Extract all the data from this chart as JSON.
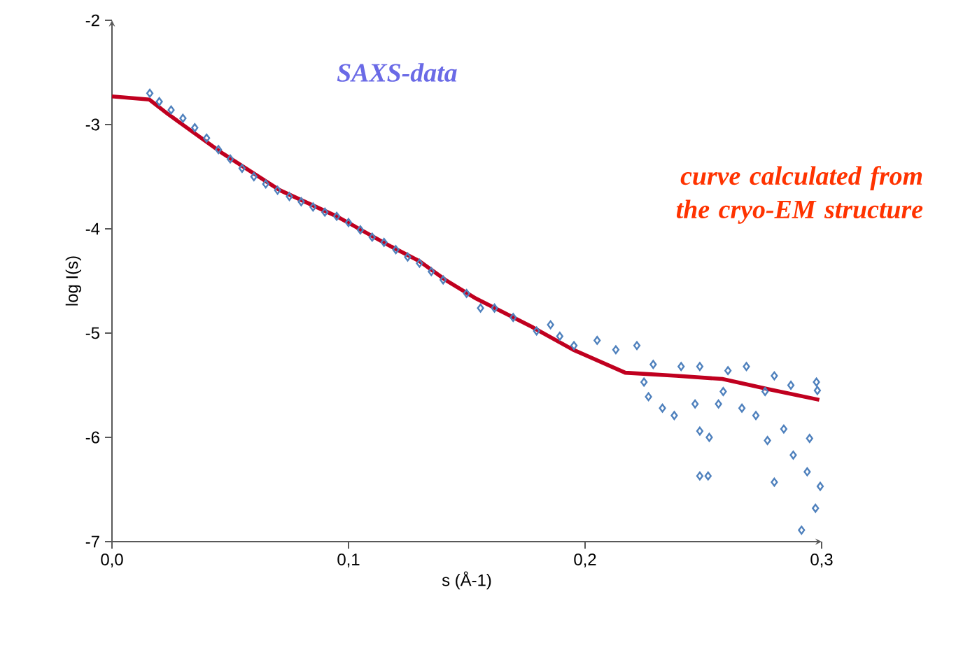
{
  "chart_data": {
    "type": "scatter",
    "xlabel": "s (Å-1)",
    "ylabel": "log I(s)",
    "xlim": [
      0,
      0.3
    ],
    "ylim": [
      -7,
      -2
    ],
    "xticks": [
      {
        "value": 0,
        "label": "0,0"
      },
      {
        "value": 0.1,
        "label": "0,1"
      },
      {
        "value": 0.2,
        "label": "0,2"
      },
      {
        "value": 0.3,
        "label": "0,3"
      }
    ],
    "yticks": [
      -7,
      -6,
      -5,
      -4,
      -3,
      -2
    ],
    "grid": false,
    "annotations": [
      "SAXS-data",
      "curve calculated from the cryo-EM structure"
    ],
    "series": [
      {
        "color": "#4f81bd",
        "marker": "diamond",
        "x": [
          0.016,
          0.02,
          0.025,
          0.03,
          0.035,
          0.04,
          0.045,
          0.05,
          0.055,
          0.06,
          0.065,
          0.07,
          0.075,
          0.08,
          0.085,
          0.09,
          0.095,
          0.1,
          0.105,
          0.11,
          0.115,
          0.12,
          0.125,
          0.13,
          0.135,
          0.14,
          0.1499,
          0.1558,
          0.1617,
          0.1696,
          0.1795,
          0.1854,
          0.1893,
          0.1953,
          0.2051,
          0.213,
          0.2219,
          0.2249,
          0.2268,
          0.2288,
          0.2327,
          0.2377,
          0.2406,
          0.2465,
          0.2485,
          0.2485,
          0.2485,
          0.252,
          0.2525,
          0.2564,
          0.2584,
          0.2604,
          0.2663,
          0.2682,
          0.2722,
          0.2761,
          0.2771,
          0.28,
          0.28,
          0.284,
          0.287,
          0.288,
          0.2915,
          0.2939,
          0.2949,
          0.2974,
          0.2978,
          0.2982,
          0.2994
        ],
        "values": [
          -2.7,
          -2.78,
          -2.86,
          -2.94,
          -3.03,
          -3.13,
          -3.24,
          -3.33,
          -3.42,
          -3.5,
          -3.57,
          -3.63,
          -3.69,
          -3.74,
          -3.79,
          -3.84,
          -3.88,
          -3.94,
          -4.01,
          -4.08,
          -4.13,
          -4.2,
          -4.27,
          -4.33,
          -4.41,
          -4.49,
          -4.62,
          -4.76,
          -4.76,
          -4.85,
          -4.98,
          -4.92,
          -5.03,
          -5.12,
          -5.07,
          -5.16,
          -5.12,
          -5.47,
          -5.61,
          -5.3,
          -5.72,
          -5.79,
          -5.32,
          -5.68,
          -5.32,
          -5.94,
          -6.37,
          -6.37,
          -6.0,
          -5.68,
          -5.56,
          -5.36,
          -5.72,
          -5.32,
          -5.79,
          -5.56,
          -6.03,
          -5.41,
          -6.43,
          -5.92,
          -5.5,
          -6.17,
          -6.89,
          -6.33,
          -6.01,
          -6.68,
          -5.47,
          -5.55,
          -6.47
        ]
      },
      {
        "type": "line",
        "color": "#c0001f",
        "marker": "none",
        "line_style": "solid",
        "x": [
          0,
          0.0158,
          0.0237,
          0.047,
          0.071,
          0.095,
          0.118,
          0.13,
          0.141,
          0.154,
          0.1775,
          0.195,
          0.217,
          0.2386,
          0.258,
          0.278,
          0.299
        ],
        "values": [
          -2.73,
          -2.76,
          -2.9,
          -3.28,
          -3.63,
          -3.88,
          -4.17,
          -4.31,
          -4.49,
          -4.67,
          -4.94,
          -5.16,
          -5.38,
          -5.41,
          -5.44,
          -5.54,
          -5.64
        ]
      }
    ]
  }
}
